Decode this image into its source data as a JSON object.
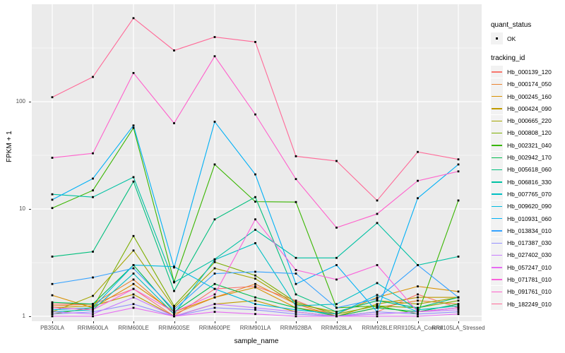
{
  "legend": {
    "quant_status_title": "quant_status",
    "quant_status_value": "OK",
    "tracking_id_title": "tracking_id"
  },
  "chart_data": {
    "type": "line",
    "title": "",
    "xlabel": "sample_name",
    "ylabel": "FPKM + 1",
    "y_scale": "log10",
    "ylim": [
      0.9,
      800
    ],
    "y_tick_labels": [
      "1",
      "10",
      "100"
    ],
    "y_tick_values": [
      1,
      10,
      100
    ],
    "y_minor_gridlines": [
      3.162,
      31.62,
      316.2
    ],
    "grid": "on",
    "legend_position": "right",
    "point_marker": {
      "shape": "small-black-square",
      "meaning": "quant_status OK"
    },
    "categories": [
      "PB350LA",
      "RRIM600LA",
      "RRIM600LE",
      "RRIM600SE",
      "RRIM600PE",
      "RRIM901LA",
      "RRIM928BA",
      "RRIM928LA",
      "RRIM928LE",
      "RRII105LA_Control",
      "RRII105LA_Stressed"
    ],
    "series": [
      {
        "name": "Hb_000139_120",
        "color": "#F8766D",
        "values": [
          1.3,
          1.3,
          1.8,
          1.0,
          1.8,
          1.9,
          1.4,
          1.0,
          1.1,
          1.6,
          1.2
        ]
      },
      {
        "name": "Hb_000174_050",
        "color": "#EA8331",
        "values": [
          1.25,
          1.3,
          2.2,
          1.05,
          1.5,
          2.0,
          1.3,
          1.0,
          1.2,
          1.4,
          1.3
        ]
      },
      {
        "name": "Hb_000245_160",
        "color": "#D89000",
        "values": [
          1.57,
          1.2,
          2.0,
          1.1,
          1.5,
          1.86,
          1.2,
          1.05,
          1.5,
          1.9,
          1.7
        ]
      },
      {
        "name": "Hb_000424_090",
        "color": "#C09B00",
        "values": [
          1.2,
          1.25,
          1.6,
          1.0,
          1.3,
          1.4,
          1.1,
          1.0,
          1.3,
          1.5,
          1.5
        ]
      },
      {
        "name": "Hb_000665_220",
        "color": "#A3A500",
        "values": [
          1.1,
          1.55,
          4.1,
          1.2,
          2.8,
          2.24,
          1.3,
          1.1,
          1.4,
          1.3,
          1.5
        ]
      },
      {
        "name": "Hb_000808_120",
        "color": "#7CAE00",
        "values": [
          1.05,
          1.2,
          5.6,
          1.25,
          3.2,
          2.4,
          1.35,
          1.05,
          1.25,
          1.2,
          1.4
        ]
      },
      {
        "name": "Hb_002321_040",
        "color": "#39B600",
        "values": [
          10.2,
          14.9,
          57.0,
          2.1,
          26.0,
          11.7,
          11.6,
          1.2,
          1.25,
          1.05,
          12.0
        ]
      },
      {
        "name": "Hb_002942_170",
        "color": "#00BB4E",
        "values": [
          1.35,
          1.3,
          3.0,
          1.1,
          2.0,
          1.5,
          1.2,
          1.0,
          1.2,
          1.1,
          1.3
        ]
      },
      {
        "name": "Hb_005618_060",
        "color": "#00BF7D",
        "values": [
          3.6,
          4.0,
          18.0,
          1.72,
          8.0,
          12.9,
          1.6,
          1.1,
          1.4,
          1.2,
          1.5
        ]
      },
      {
        "name": "Hb_006816_330",
        "color": "#00C1A3",
        "values": [
          13.7,
          12.9,
          19.8,
          2.07,
          3.4,
          6.4,
          3.5,
          3.5,
          7.4,
          3.0,
          3.6
        ]
      },
      {
        "name": "Hb_007765_070",
        "color": "#00BFC4",
        "values": [
          1.1,
          1.15,
          2.5,
          1.05,
          3.36,
          4.8,
          1.25,
          1.3,
          2.04,
          1.15,
          1.25
        ]
      },
      {
        "name": "Hb_009620_090",
        "color": "#00BAE0",
        "values": [
          1.15,
          1.2,
          3.0,
          2.9,
          1.8,
          1.3,
          1.15,
          1.05,
          1.58,
          1.1,
          1.2
        ]
      },
      {
        "name": "Hb_010931_060",
        "color": "#00B0F6",
        "values": [
          12.2,
          19.2,
          60.0,
          2.85,
          65.0,
          21.0,
          2.0,
          3.0,
          1.1,
          12.6,
          26.0
        ]
      },
      {
        "name": "Hb_013834_010",
        "color": "#35A2FF",
        "values": [
          2.0,
          2.3,
          2.8,
          1.15,
          2.5,
          2.6,
          2.5,
          1.2,
          1.45,
          3.0,
          1.5
        ]
      },
      {
        "name": "Hb_017387_030",
        "color": "#9590FF",
        "values": [
          1.05,
          1.1,
          1.3,
          1.0,
          1.2,
          1.15,
          1.05,
          1.0,
          1.1,
          1.05,
          1.1
        ]
      },
      {
        "name": "Hb_027402_030",
        "color": "#C77CFF",
        "values": [
          1.1,
          1.05,
          1.5,
          1.0,
          1.3,
          1.2,
          1.1,
          1.0,
          1.05,
          1.1,
          1.15
        ]
      },
      {
        "name": "Hb_057247_010",
        "color": "#E76BF3",
        "values": [
          1.0,
          1.0,
          1.2,
          1.0,
          1.1,
          1.05,
          1.0,
          1.0,
          1.0,
          1.0,
          1.05
        ]
      },
      {
        "name": "Hb_071781_010",
        "color": "#FA62DB",
        "values": [
          1.2,
          1.15,
          1.8,
          1.1,
          1.6,
          8.0,
          2.7,
          2.2,
          3.0,
          1.1,
          1.2
        ]
      },
      {
        "name": "Hb_091761_010",
        "color": "#FF61CC",
        "values": [
          30.0,
          33.0,
          185,
          63.0,
          265,
          76.0,
          19.0,
          6.7,
          9.0,
          18.3,
          22.4
        ]
      },
      {
        "name": "Hb_182249_010",
        "color": "#FF6A98",
        "values": [
          110,
          170,
          600,
          300,
          400,
          360,
          31.0,
          28.0,
          12.0,
          34.0,
          29.0
        ]
      }
    ]
  }
}
